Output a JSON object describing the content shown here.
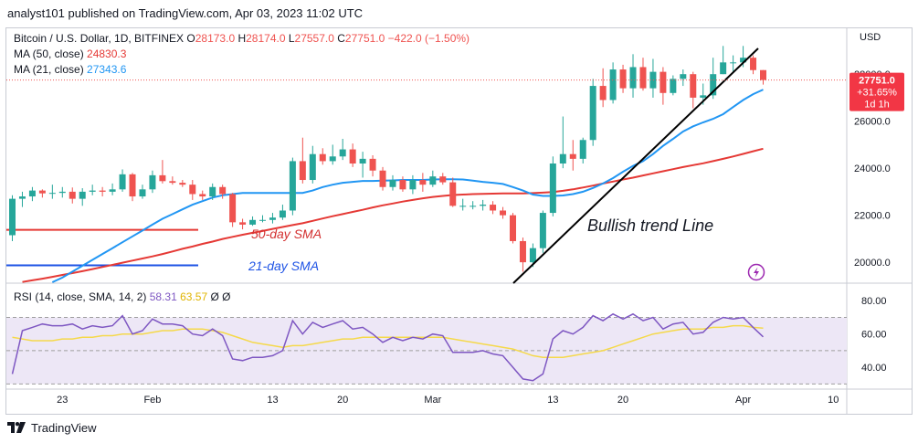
{
  "header": {
    "text": "analyst101 published on TradingView.com, Apr 03, 2023 11:02 UTC"
  },
  "footer": {
    "brand": "TradingView"
  },
  "legend": {
    "symbol": "Bitcoin / U.S. Dollar, 1D, BITFINEX",
    "ohlc": [
      {
        "k": "O",
        "v": "28173.0"
      },
      {
        "k": "H",
        "v": "28174.0"
      },
      {
        "k": "L",
        "v": "27557.0"
      },
      {
        "k": "C",
        "v": "27751.0"
      }
    ],
    "change": "−422.0 (−1.50%)",
    "ma50_label": "MA (50, close)",
    "ma50_value": "24830.3",
    "ma21_label": "MA (21, close)",
    "ma21_value": "27343.6",
    "rsi_label": "RSI (14, close, SMA, 14, 2)",
    "rsi_value": "58.31",
    "rsi_sma_value": "63.57",
    "rsi_extra1": "Ø",
    "rsi_extra2": "Ø"
  },
  "price_tag": {
    "price": "27751.0",
    "change": "+31.65%",
    "time": "1d 1h"
  },
  "annotations": {
    "trend": "Bullish trend Line",
    "sma50": "50-day SMA",
    "sma21": "21-day SMA"
  },
  "colors": {
    "up": "#26a69a",
    "down": "#ef5350",
    "ma50": "#e53935",
    "ma21": "#2196f3",
    "rsi": "#7e57c2",
    "rsi_sma": "#f5d94b",
    "rsi_band": "#ede7f6",
    "trend": "#000000",
    "blue_text": "#1e53e5",
    "red_text": "#d32f2f",
    "icon": "#9c27b0"
  },
  "chart_data": {
    "type": "candlestick",
    "title": "Bitcoin / U.S. Dollar, 1D, BITFINEX",
    "y_unit": "USD",
    "ylim": [
      19150,
      29950
    ],
    "y_ticks": [
      "20000.0",
      "22000.0",
      "24000.0",
      "26000.0",
      "28000.0"
    ],
    "x_ticks": [
      "23",
      "Feb",
      "13",
      "20",
      "Mar",
      "13",
      "20",
      "Apr",
      "10"
    ],
    "x_tick_dates": [
      "2023-01-23",
      "2023-02-01",
      "2023-02-13",
      "2023-02-20",
      "2023-03-01",
      "2023-03-13",
      "2023-03-20",
      "2023-04-01",
      "2023-04-10"
    ],
    "dates": [
      "2023-01-18",
      "2023-01-19",
      "2023-01-20",
      "2023-01-21",
      "2023-01-22",
      "2023-01-23",
      "2023-01-24",
      "2023-01-25",
      "2023-01-26",
      "2023-01-27",
      "2023-01-28",
      "2023-01-29",
      "2023-01-30",
      "2023-01-31",
      "2023-02-01",
      "2023-02-02",
      "2023-02-03",
      "2023-02-04",
      "2023-02-05",
      "2023-02-06",
      "2023-02-07",
      "2023-02-08",
      "2023-02-09",
      "2023-02-10",
      "2023-02-11",
      "2023-02-12",
      "2023-02-13",
      "2023-02-14",
      "2023-02-15",
      "2023-02-16",
      "2023-02-17",
      "2023-02-18",
      "2023-02-19",
      "2023-02-20",
      "2023-02-21",
      "2023-02-22",
      "2023-02-23",
      "2023-02-24",
      "2023-02-25",
      "2023-02-26",
      "2023-02-27",
      "2023-02-28",
      "2023-03-01",
      "2023-03-02",
      "2023-03-03",
      "2023-03-04",
      "2023-03-05",
      "2023-03-06",
      "2023-03-07",
      "2023-03-08",
      "2023-03-09",
      "2023-03-10",
      "2023-03-11",
      "2023-03-12",
      "2023-03-13",
      "2023-03-14",
      "2023-03-15",
      "2023-03-16",
      "2023-03-17",
      "2023-03-18",
      "2023-03-19",
      "2023-03-20",
      "2023-03-21",
      "2023-03-22",
      "2023-03-23",
      "2023-03-24",
      "2023-03-25",
      "2023-03-26",
      "2023-03-27",
      "2023-03-28",
      "2023-03-29",
      "2023-03-30",
      "2023-03-31",
      "2023-04-01",
      "2023-04-02",
      "2023-04-03"
    ],
    "open": [
      21150,
      22700,
      22800,
      23050,
      22930,
      22950,
      23000,
      22700,
      23000,
      23050,
      23000,
      23100,
      23740,
      22800,
      23100,
      23700,
      23450,
      23380,
      23300,
      22900,
      22800,
      23200,
      22900,
      21700,
      21600,
      21800,
      21800,
      21900,
      22200,
      24300,
      23500,
      24600,
      24300,
      24500,
      24800,
      24200,
      24400,
      23900,
      23200,
      23500,
      23100,
      23500,
      23300,
      23650,
      23400,
      22400,
      22400,
      22400,
      22450,
      22200,
      22000,
      20900,
      20000,
      20600,
      22100,
      24200,
      24600,
      24400,
      25200,
      27500,
      26900,
      28200,
      27400,
      28300,
      27400,
      28100,
      27200,
      27800,
      28000,
      27000,
      27100,
      28000,
      28500,
      28500,
      28700,
      28173
    ],
    "close": [
      22700,
      22800,
      23050,
      22930,
      22950,
      23000,
      22700,
      23000,
      23050,
      23000,
      23100,
      23740,
      22800,
      23100,
      23700,
      23450,
      23380,
      23300,
      22900,
      22800,
      23200,
      22900,
      21700,
      21600,
      21800,
      21800,
      21900,
      22200,
      24300,
      23500,
      24600,
      24300,
      24500,
      24800,
      24200,
      24400,
      23900,
      23200,
      23500,
      23100,
      23500,
      23300,
      23650,
      23400,
      22400,
      22400,
      22400,
      22450,
      22200,
      22000,
      20900,
      20000,
      20600,
      22100,
      24200,
      24600,
      24400,
      25200,
      27500,
      26900,
      28200,
      27400,
      28300,
      27400,
      28100,
      27200,
      27800,
      28000,
      27000,
      27100,
      28000,
      28500,
      28500,
      28700,
      28173,
      27751
    ],
    "high": [
      22850,
      23000,
      23200,
      23100,
      23300,
      23200,
      23180,
      23150,
      23300,
      23200,
      23350,
      23950,
      23800,
      23300,
      23900,
      24350,
      23650,
      23500,
      23500,
      23050,
      23350,
      23300,
      22950,
      21850,
      21950,
      22000,
      22100,
      22450,
      24450,
      25300,
      24950,
      24850,
      25000,
      25250,
      25050,
      24700,
      24550,
      24050,
      23700,
      23650,
      23700,
      23800,
      23900,
      23800,
      23600,
      22700,
      22600,
      22650,
      22600,
      22350,
      22100,
      21050,
      20800,
      22200,
      24500,
      26200,
      25200,
      25300,
      27800,
      28250,
      28500,
      28400,
      28850,
      28700,
      28650,
      28300,
      27950,
      28200,
      28100,
      27600,
      28700,
      29200,
      28800,
      29200,
      28800,
      28174
    ],
    "low": [
      20900,
      22350,
      22600,
      22750,
      22700,
      22750,
      22500,
      22400,
      22850,
      22800,
      22850,
      23000,
      22600,
      22700,
      22950,
      23350,
      23300,
      23200,
      22650,
      22650,
      22650,
      22700,
      21500,
      21400,
      21550,
      21700,
      21650,
      21800,
      22000,
      23350,
      23350,
      24150,
      24150,
      24350,
      24050,
      23600,
      23650,
      23050,
      23050,
      23000,
      22900,
      23000,
      23200,
      23300,
      22350,
      22200,
      22250,
      22200,
      22050,
      21850,
      20800,
      19600,
      19800,
      20400,
      21950,
      24000,
      23900,
      24200,
      24950,
      26600,
      26750,
      27200,
      27000,
      27300,
      27000,
      26700,
      27100,
      27500,
      26550,
      26700,
      26950,
      28000,
      28100,
      28300,
      28000,
      27557
    ],
    "ma50": [
      19100,
      19160,
      19230,
      19300,
      19380,
      19460,
      19540,
      19620,
      19710,
      19800,
      19890,
      19980,
      20070,
      20160,
      20250,
      20350,
      20460,
      20570,
      20670,
      20780,
      20880,
      20990,
      21080,
      21170,
      21250,
      21330,
      21420,
      21500,
      21580,
      21660,
      21760,
      21860,
      21960,
      22050,
      22140,
      22230,
      22330,
      22420,
      22500,
      22580,
      22650,
      22720,
      22780,
      22820,
      22860,
      22880,
      22900,
      22910,
      22920,
      22930,
      22930,
      22930,
      22940,
      22960,
      22990,
      23040,
      23100,
      23180,
      23260,
      23350,
      23430,
      23520,
      23600,
      23690,
      23780,
      23870,
      23960,
      24050,
      24130,
      24210,
      24300,
      24400,
      24500,
      24610,
      24720,
      24830.3
    ],
    "ma21": [
      18500,
      18650,
      18800,
      18950,
      19150,
      19350,
      19600,
      19850,
      20100,
      20350,
      20600,
      20850,
      21100,
      21350,
      21600,
      21850,
      22050,
      22250,
      22450,
      22600,
      22750,
      22850,
      22900,
      22950,
      22950,
      22950,
      22950,
      22950,
      22950,
      22950,
      23050,
      23200,
      23300,
      23380,
      23420,
      23460,
      23460,
      23470,
      23480,
      23500,
      23500,
      23500,
      23520,
      23530,
      23530,
      23520,
      23470,
      23420,
      23380,
      23330,
      23200,
      23050,
      22880,
      22820,
      22820,
      22840,
      22900,
      23000,
      23160,
      23350,
      23580,
      23850,
      24100,
      24300,
      24600,
      24950,
      25250,
      25560,
      25780,
      25950,
      26100,
      26300,
      26600,
      26900,
      27150,
      27343.6
    ],
    "rsi": [
      36,
      62,
      64,
      66,
      65,
      65,
      66,
      63,
      65,
      64,
      65,
      71,
      60,
      62,
      69,
      66,
      66,
      65,
      60,
      59,
      63,
      59,
      45,
      44,
      46,
      46,
      47,
      50,
      68,
      60,
      67,
      64,
      66,
      68,
      63,
      64,
      60,
      55,
      58,
      56,
      58,
      57,
      60,
      59,
      49,
      49,
      49,
      50,
      48,
      47,
      40,
      33,
      32,
      36,
      57,
      62,
      60,
      64,
      71,
      68,
      72,
      69,
      72,
      68,
      70,
      63,
      66,
      67,
      60,
      61,
      67,
      70,
      69,
      70,
      64,
      58.31
    ],
    "rsi_sma": [
      58,
      57,
      56,
      56,
      56,
      57,
      57,
      58,
      58,
      59,
      59,
      60,
      60,
      60,
      61,
      62,
      62,
      63,
      63,
      63,
      62,
      61,
      59,
      57,
      55,
      54,
      53,
      52,
      53,
      53,
      54,
      55,
      56,
      57,
      57,
      58,
      58,
      58,
      58,
      58,
      58,
      58,
      58,
      58,
      57,
      56,
      55,
      54,
      53,
      52,
      51,
      49,
      47,
      46,
      46,
      46,
      47,
      48,
      49,
      50,
      52,
      54,
      56,
      58,
      60,
      61,
      62,
      63,
      63,
      63,
      64,
      64,
      65,
      65,
      64,
      63.57
    ],
    "rsi_ylim": [
      28,
      90
    ],
    "rsi_levels": [
      70,
      50,
      30
    ],
    "rsi_ticks": [
      "40.00",
      "60.00",
      "80.00"
    ]
  }
}
